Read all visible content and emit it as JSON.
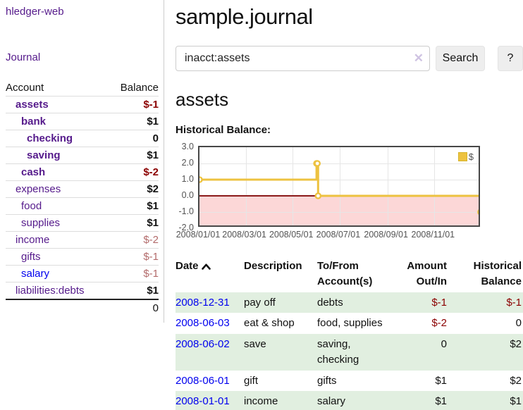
{
  "app": {
    "brand": "hledger-web",
    "nav": {
      "journal": "Journal"
    }
  },
  "colors": {
    "link_purple": "#551a8b",
    "link_blue": "#0000ee",
    "negative_strong": "#8b0000",
    "negative_muted": "#b36b6b",
    "row_green": "#e1efe0",
    "chart_series": "#edc240",
    "chart_negative_fill": "#fcd7d7",
    "chart_zero_line": "#8b1a1a"
  },
  "sidebar": {
    "headers": {
      "account": "Account",
      "balance": "Balance"
    },
    "accounts": [
      {
        "name": "assets",
        "level": 1,
        "bold": true,
        "balance": "$-1",
        "balance_style": "neg-strong",
        "link": "purple"
      },
      {
        "name": "bank",
        "level": 2,
        "bold": true,
        "balance": "$1",
        "balance_style": "normal",
        "link": "purple"
      },
      {
        "name": "checking",
        "level": 3,
        "bold": true,
        "balance": "0",
        "balance_style": "normal",
        "link": "purple"
      },
      {
        "name": "saving",
        "level": 3,
        "bold": true,
        "balance": "$1",
        "balance_style": "normal",
        "link": "purple"
      },
      {
        "name": "cash",
        "level": 2,
        "bold": true,
        "balance": "$-2",
        "balance_style": "neg-strong",
        "link": "purple"
      },
      {
        "name": "expenses",
        "level": 1,
        "bold": false,
        "balance": "$2",
        "balance_style": "normal",
        "link": "purple"
      },
      {
        "name": "food",
        "level": 2,
        "bold": false,
        "balance": "$1",
        "balance_style": "normal",
        "link": "purple"
      },
      {
        "name": "supplies",
        "level": 2,
        "bold": false,
        "balance": "$1",
        "balance_style": "normal",
        "link": "purple"
      },
      {
        "name": "income",
        "level": 1,
        "bold": false,
        "balance": "$-2",
        "balance_style": "neg-muted",
        "link": "purple"
      },
      {
        "name": "gifts",
        "level": 2,
        "bold": false,
        "balance": "$-1",
        "balance_style": "neg-muted",
        "link": "purple"
      },
      {
        "name": "salary",
        "level": 2,
        "bold": false,
        "balance": "$-1",
        "balance_style": "neg-muted",
        "link": "blue"
      },
      {
        "name": "liabilities:debts",
        "level": 1,
        "bold": false,
        "balance": "$1",
        "balance_style": "normal",
        "link": "purple"
      }
    ],
    "total": "0"
  },
  "header": {
    "title": "sample.journal"
  },
  "search": {
    "value": "inacct:assets",
    "clear_icon": "✕",
    "button_label": "Search",
    "help_label": "?"
  },
  "account_page": {
    "heading": "assets",
    "chart_label": "Historical Balance:"
  },
  "chart_data": {
    "type": "line",
    "step": true,
    "title": "Historical Balance",
    "xmin": "2008-01-01",
    "xmax": "2009-01-01",
    "ylim": [
      -2.0,
      3.0
    ],
    "yticks": [
      "3.0",
      "2.0",
      "1.0",
      "0.0",
      "-1.0",
      "-2.0"
    ],
    "ytick_values": [
      3,
      2,
      1,
      0,
      -1,
      -2
    ],
    "xticks": [
      "2008/01/01",
      "2008/03/01",
      "2008/05/01",
      "2008/07/01",
      "2008/09/01",
      "2008/11/01"
    ],
    "xtick_dates": [
      "2008-01-01",
      "2008-03-01",
      "2008-05-01",
      "2008-07-01",
      "2008-09-01",
      "2008-11-01"
    ],
    "grid": true,
    "legend": {
      "label": "$",
      "position": "top-right"
    },
    "series": [
      {
        "name": "$",
        "points": [
          {
            "x": "2008-01-01",
            "y": 1
          },
          {
            "x": "2008-06-01",
            "y": 2
          },
          {
            "x": "2008-06-02",
            "y": 2
          },
          {
            "x": "2008-06-03",
            "y": 0
          },
          {
            "x": "2008-12-31",
            "y": -1
          }
        ]
      }
    ],
    "negative_region": {
      "from": -2,
      "to": 0
    }
  },
  "register": {
    "columns": [
      {
        "label": "Date",
        "sorted": "asc",
        "align": "left"
      },
      {
        "label": "Description",
        "align": "left"
      },
      {
        "label": "To/From Account(s)",
        "align": "left"
      },
      {
        "label": "Amount Out/In",
        "align": "right"
      },
      {
        "label": "Historical Balance",
        "align": "right"
      }
    ],
    "rows": [
      {
        "date": "2008-12-31",
        "description": "pay off",
        "accounts": "debts",
        "amount": "$-1",
        "amount_negative": true,
        "balance": "$-1",
        "balance_negative": true
      },
      {
        "date": "2008-06-03",
        "description": "eat & shop",
        "accounts": "food, supplies",
        "amount": "$-2",
        "amount_negative": true,
        "balance": "0",
        "balance_negative": false
      },
      {
        "date": "2008-06-02",
        "description": "save",
        "accounts": "saving, checking",
        "amount": "0",
        "amount_negative": false,
        "balance": "$2",
        "balance_negative": false
      },
      {
        "date": "2008-06-01",
        "description": "gift",
        "accounts": "gifts",
        "amount": "$1",
        "amount_negative": false,
        "balance": "$2",
        "balance_negative": false
      },
      {
        "date": "2008-01-01",
        "description": "income",
        "accounts": "salary",
        "amount": "$1",
        "amount_negative": false,
        "balance": "$1",
        "balance_negative": false
      }
    ]
  }
}
